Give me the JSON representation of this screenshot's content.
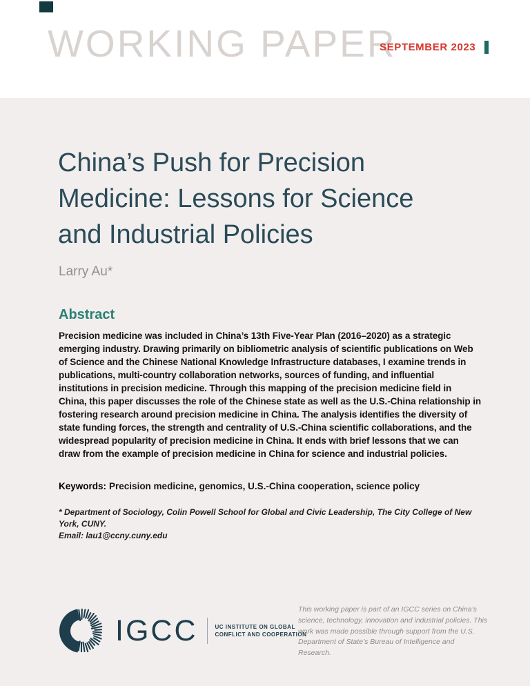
{
  "header": {
    "kicker": "WORKING PAPER",
    "date": "SEPTEMBER 2023"
  },
  "title": {
    "lines": [
      "China’s Push for Precision",
      "Medicine: Lessons for Science",
      "and Industrial Policies"
    ]
  },
  "author": "Larry Au*",
  "abstract": {
    "heading": "Abstract",
    "body": "Precision medicine was included in China’s 13th Five-Year Plan (2016–2020) as a strategic emerging industry. Drawing primarily on bibliometric analysis of scientific publications on Web of Science and the Chinese National Knowledge Infrastructure databases, I examine trends in publications, multi-country collaboration networks, sources of funding, and influential institutions in precision medicine. Through this mapping of the precision medicine field in China, this paper discusses the role of the Chinese state as well as the U.S.-China relationship in fostering research around precision medicine in China. The analysis identifies the diversity of state funding forces, the strength and centrality of U.S.-China scientific collaborations, and the widespread popularity of precision medicine in China. It ends with brief lessons that we can draw from the example of precision medicine in China for science and industrial policies."
  },
  "keywords": {
    "label": "Keywords:",
    "body": "Precision medicine, genomics, U.S.-China cooperation, science policy"
  },
  "footnote": {
    "lines": [
      "* Department of Sociology, Colin Powell School for Global and Civic Leadership, The City College of New York, CUNY.",
      "Email: lau1@ccny.cuny.edu"
    ]
  },
  "footer": {
    "logo_text": "IGCC",
    "logo_label_line1": "UC INSTITUTE ON GLOBAL",
    "logo_label_line2": "CONFLICT AND COOPERATION",
    "note": "This working paper is part of an IGCC series on China’s science, technology, innovation and industrial policies. This work was made possible through support from the U.S. Department of State’s Bureau of Intelligence and Research."
  },
  "colors": {
    "date_red": "#d7372e",
    "accent_teal_bar": "#1a6a5e",
    "title_navy": "#2b4b58",
    "abstract_heading_teal": "#2a8173",
    "logo_navy": "#1e3d4d",
    "content_background": "#f1eeed",
    "kicker_gray": "#d9d3d0"
  }
}
